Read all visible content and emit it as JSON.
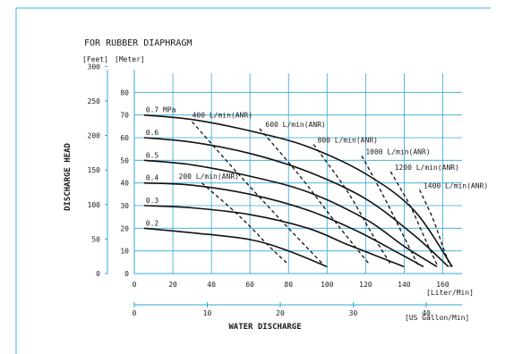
{
  "chart_data": {
    "type": "line",
    "title": "FOR RUBBER DIAPHRAGM",
    "unit_feet": "[Feet]",
    "unit_meter": "[Meter]",
    "ylabel": "DISCHARGE HEAD",
    "xlabel": "WATER DISCHARGE",
    "x_unit_lpm": "[Liter/Min]",
    "x_unit_usgpm": "[US Gallon/Min]",
    "xlim": [
      0,
      170
    ],
    "ylim_m": [
      0,
      90
    ],
    "grid": true,
    "x_ticks_lpm": [
      "0",
      "20",
      "40",
      "60",
      "80",
      "100",
      "120",
      "140",
      "160"
    ],
    "x_ticks_lpm_values": [
      0,
      20,
      40,
      60,
      80,
      100,
      120,
      140,
      160
    ],
    "x_ticks_usgpm": [
      "0",
      "10",
      "20",
      "30",
      "40"
    ],
    "x_ticks_usgpm_values": [
      0,
      10,
      20,
      30,
      40
    ],
    "y_ticks_m": [
      "0",
      "10",
      "20",
      "30",
      "40",
      "50",
      "60",
      "70",
      "80"
    ],
    "y_ticks_m_values": [
      0,
      10,
      20,
      30,
      40,
      50,
      60,
      70,
      80
    ],
    "y_ticks_ft": [
      "0",
      "50",
      "100",
      "150",
      "200",
      "250",
      "300"
    ],
    "y_ticks_ft_values": [
      0,
      50,
      100,
      150,
      200,
      250,
      300
    ],
    "pressure_curves": [
      {
        "name": "0.7 MPa",
        "x": [
          5,
          30,
          60,
          90,
          120,
          145,
          165
        ],
        "y": [
          70,
          68,
          63,
          56,
          44,
          28,
          3
        ]
      },
      {
        "name": "0.6",
        "x": [
          5,
          30,
          60,
          90,
          120,
          145,
          163
        ],
        "y": [
          60,
          58,
          53,
          45,
          33,
          17,
          3
        ]
      },
      {
        "name": "0.5",
        "x": [
          5,
          30,
          60,
          90,
          120,
          140,
          157
        ],
        "y": [
          50,
          48,
          43,
          36,
          24,
          12,
          3
        ]
      },
      {
        "name": "0.4",
        "x": [
          5,
          30,
          60,
          90,
          115,
          135,
          150
        ],
        "y": [
          40,
          39,
          35,
          28,
          19,
          10,
          3
        ]
      },
      {
        "name": "0.3",
        "x": [
          5,
          30,
          60,
          90,
          110,
          125,
          140
        ],
        "y": [
          30,
          29,
          26,
          20,
          13,
          8,
          3
        ]
      },
      {
        "name": "0.2",
        "x": [
          5,
          30,
          60,
          80,
          100
        ],
        "y": [
          20,
          18,
          15,
          10,
          3
        ]
      }
    ],
    "air_curves": [
      {
        "label": "200 L/min(ANR)",
        "label_x": 23,
        "label_y": 41,
        "x": [
          35,
          55,
          70,
          80
        ],
        "y": [
          40,
          25,
          12,
          4
        ]
      },
      {
        "label": "400 L/min(ANR)",
        "label_x": 30,
        "label_y": 68,
        "x": [
          30,
          55,
          80,
          98
        ],
        "y": [
          67,
          43,
          20,
          4
        ]
      },
      {
        "label": "600 L/min(ANR)",
        "label_x": 68,
        "label_y": 64,
        "x": [
          65,
          85,
          105,
          122
        ],
        "y": [
          64,
          44,
          22,
          4
        ]
      },
      {
        "label": "800 L/min(ANR)",
        "label_x": 95,
        "label_y": 57,
        "x": [
          93,
          110,
          123,
          133
        ],
        "y": [
          57,
          37,
          18,
          4
        ]
      },
      {
        "label": "1000 L/min(ANR)",
        "label_x": 120,
        "label_y": 52,
        "x": [
          118,
          130,
          140,
          147
        ],
        "y": [
          52,
          33,
          16,
          4
        ]
      },
      {
        "label": "1200 L/min(ANR)",
        "label_x": 135,
        "label_y": 45,
        "x": [
          133,
          143,
          151,
          157
        ],
        "y": [
          45,
          30,
          15,
          4
        ]
      },
      {
        "label": "1400 L/min(ANR)",
        "label_x": 150,
        "label_y": 37,
        "x": [
          148,
          155,
          160,
          164
        ],
        "y": [
          37,
          24,
          12,
          3
        ]
      }
    ]
  }
}
